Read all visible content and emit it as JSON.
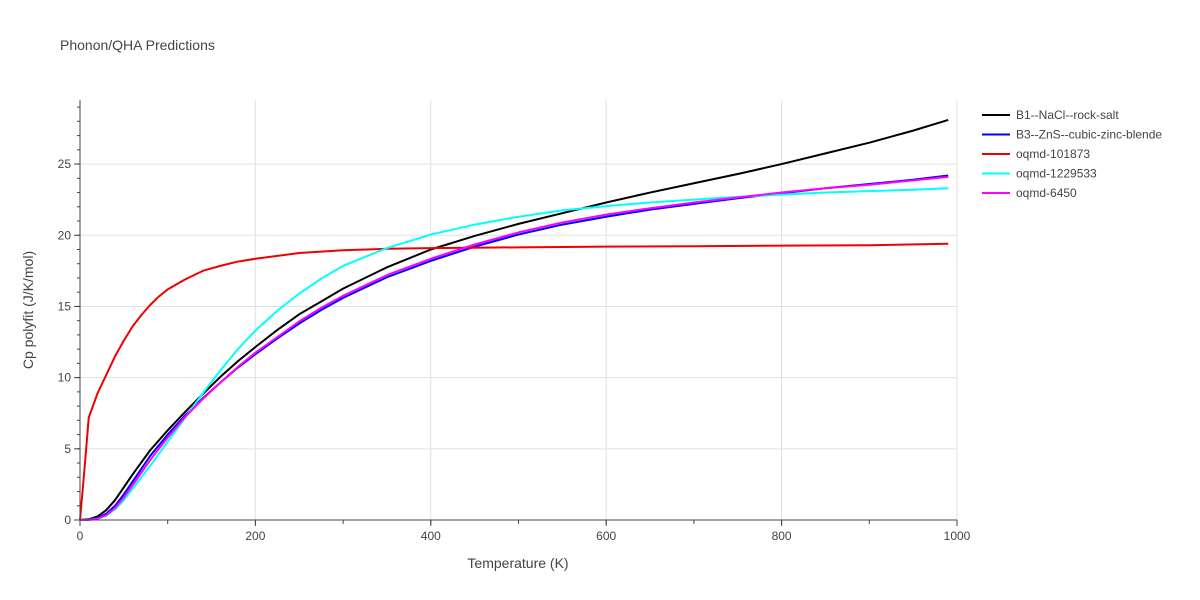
{
  "chart_data": {
    "type": "line",
    "title": "Phonon/QHA Predictions",
    "xlabel": "Temperature (K)",
    "ylabel": "Cp polyfit (J/K/mol)",
    "xlim": [
      0,
      1000
    ],
    "ylim": [
      0,
      29.5
    ],
    "xticks": [
      0,
      200,
      400,
      600,
      800,
      1000
    ],
    "yticks": [
      0,
      5,
      10,
      15,
      20,
      25
    ],
    "grid": true,
    "legend_position": "top-right",
    "series": [
      {
        "name": "B1--NaCl--rock-salt",
        "color": "#000000",
        "x": [
          0,
          10,
          20,
          30,
          40,
          50,
          60,
          80,
          100,
          120,
          140,
          160,
          180,
          200,
          225,
          250,
          275,
          300,
          350,
          400,
          450,
          500,
          550,
          600,
          650,
          700,
          750,
          800,
          850,
          900,
          950,
          990
        ],
        "y": [
          0,
          0.05,
          0.25,
          0.7,
          1.4,
          2.3,
          3.2,
          4.9,
          6.3,
          7.6,
          8.85,
          10.05,
          11.15,
          12.15,
          13.35,
          14.45,
          15.35,
          16.25,
          17.75,
          19.0,
          19.95,
          20.8,
          21.55,
          22.3,
          23.0,
          23.65,
          24.3,
          25.0,
          25.75,
          26.5,
          27.35,
          28.1
        ]
      },
      {
        "name": "B3--ZnS--cubic-zinc-blende",
        "color": "#0000ff",
        "x": [
          0,
          10,
          20,
          30,
          40,
          50,
          60,
          80,
          100,
          120,
          140,
          160,
          180,
          200,
          225,
          250,
          275,
          300,
          350,
          400,
          450,
          500,
          550,
          600,
          650,
          700,
          750,
          800,
          850,
          900,
          950,
          990
        ],
        "y": [
          0,
          0.02,
          0.15,
          0.45,
          1.0,
          1.8,
          2.7,
          4.5,
          6.0,
          7.35,
          8.55,
          9.65,
          10.7,
          11.65,
          12.75,
          13.8,
          14.75,
          15.6,
          17.05,
          18.2,
          19.2,
          20.05,
          20.75,
          21.3,
          21.8,
          22.2,
          22.6,
          22.95,
          23.3,
          23.6,
          23.9,
          24.2
        ]
      },
      {
        "name": "oqmd-101873",
        "color": "#ee0000",
        "x": [
          0,
          5,
          10,
          20,
          30,
          40,
          50,
          60,
          70,
          80,
          90,
          100,
          120,
          140,
          160,
          180,
          200,
          250,
          300,
          350,
          400,
          500,
          600,
          700,
          800,
          900,
          990
        ],
        "y": [
          0,
          3.5,
          7.2,
          8.9,
          10.2,
          11.5,
          12.6,
          13.6,
          14.4,
          15.1,
          15.7,
          16.2,
          16.9,
          17.5,
          17.85,
          18.15,
          18.35,
          18.75,
          18.95,
          19.05,
          19.1,
          19.15,
          19.2,
          19.23,
          19.27,
          19.3,
          19.4
        ]
      },
      {
        "name": "oqmd-1229533",
        "color": "#00ffff",
        "x": [
          0,
          10,
          20,
          30,
          40,
          50,
          60,
          80,
          100,
          120,
          140,
          160,
          180,
          200,
          225,
          250,
          275,
          300,
          350,
          400,
          450,
          500,
          550,
          600,
          650,
          700,
          750,
          800,
          850,
          900,
          950,
          990
        ],
        "y": [
          0,
          0.01,
          0.08,
          0.3,
          0.75,
          1.4,
          2.2,
          3.8,
          5.5,
          7.2,
          8.9,
          10.5,
          12.0,
          13.3,
          14.7,
          15.9,
          16.95,
          17.85,
          19.1,
          20.05,
          20.75,
          21.3,
          21.75,
          22.05,
          22.3,
          22.5,
          22.7,
          22.85,
          23.0,
          23.1,
          23.2,
          23.3
        ]
      },
      {
        "name": "oqmd-6450",
        "color": "#ff00ff",
        "x": [
          0,
          10,
          20,
          30,
          40,
          50,
          60,
          80,
          100,
          120,
          140,
          160,
          180,
          200,
          225,
          250,
          275,
          300,
          350,
          400,
          450,
          500,
          550,
          600,
          650,
          700,
          750,
          800,
          850,
          900,
          950,
          990
        ],
        "y": [
          0,
          0.01,
          0.1,
          0.35,
          0.85,
          1.6,
          2.45,
          4.2,
          5.8,
          7.25,
          8.5,
          9.65,
          10.75,
          11.75,
          12.85,
          13.95,
          14.9,
          15.75,
          17.2,
          18.35,
          19.35,
          20.2,
          20.9,
          21.45,
          21.9,
          22.3,
          22.65,
          23.0,
          23.3,
          23.55,
          23.85,
          24.1
        ]
      }
    ]
  }
}
